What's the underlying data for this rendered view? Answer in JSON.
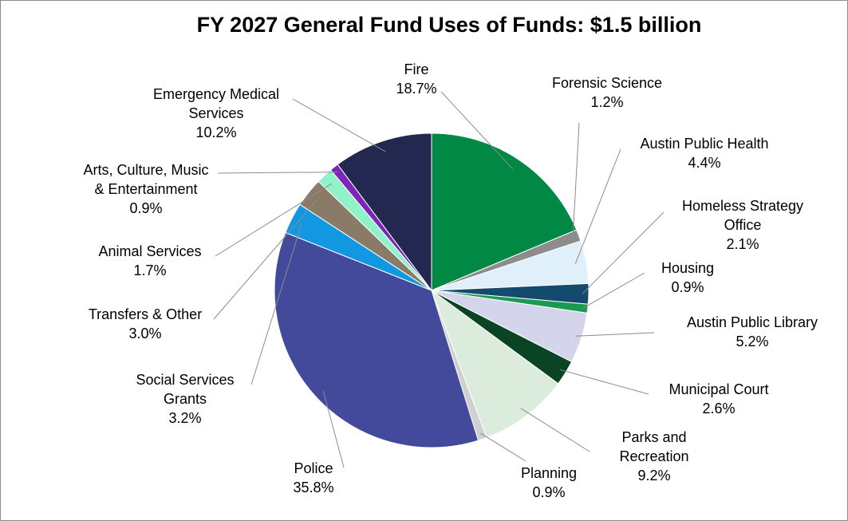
{
  "chart_data": {
    "type": "pie",
    "title": "FY 2027 General Fund Uses of Funds: $1.5 billion",
    "start": "12 o'clock",
    "direction": "clockwise",
    "slices": [
      {
        "label": [
          "Fire"
        ],
        "value": 18.7,
        "pct": "18.7%",
        "color": "#008844"
      },
      {
        "label": [
          "Forensic Science"
        ],
        "value": 1.2,
        "pct": "1.2%",
        "color": "#8c8c8c"
      },
      {
        "label": [
          "Austin Public Health"
        ],
        "value": 4.4,
        "pct": "4.4%",
        "color": "#dff0fa"
      },
      {
        "label": [
          "Homeless Strategy",
          "Office"
        ],
        "value": 2.1,
        "pct": "2.1%",
        "color": "#144a6e"
      },
      {
        "label": [
          "Housing"
        ],
        "value": 0.9,
        "pct": "0.9%",
        "color": "#1a9a50"
      },
      {
        "label": [
          "Austin Public Library"
        ],
        "value": 5.2,
        "pct": "5.2%",
        "color": "#d4d4ec"
      },
      {
        "label": [
          "Municipal Court"
        ],
        "value": 2.6,
        "pct": "2.6%",
        "color": "#0b4424"
      },
      {
        "label": [
          "Parks and",
          "Recreation"
        ],
        "value": 9.2,
        "pct": "9.2%",
        "color": "#dcecdc"
      },
      {
        "label": [
          "Planning"
        ],
        "value": 0.9,
        "pct": "0.9%",
        "color": "#d0d0d0"
      },
      {
        "label": [
          "Police"
        ],
        "value": 35.8,
        "pct": "35.8%",
        "color": "#434a9c"
      },
      {
        "label": [
          "Social Services",
          "Grants"
        ],
        "value": 3.2,
        "pct": "3.2%",
        "color": "#1198e0"
      },
      {
        "label": [
          "Transfers & Other"
        ],
        "value": 3.0,
        "pct": "3.0%",
        "color": "#8a7a68"
      },
      {
        "label": [
          "Animal Services"
        ],
        "value": 1.7,
        "pct": "1.7%",
        "color": "#90f2c8"
      },
      {
        "label": [
          "Arts, Culture, Music",
          "& Entertainment"
        ],
        "value": 0.9,
        "pct": "0.9%",
        "color": "#7c25b8"
      },
      {
        "label": [
          "Emergency Medical",
          "Services"
        ],
        "value": 10.2,
        "pct": "10.2%",
        "color": "#232850"
      }
    ]
  }
}
